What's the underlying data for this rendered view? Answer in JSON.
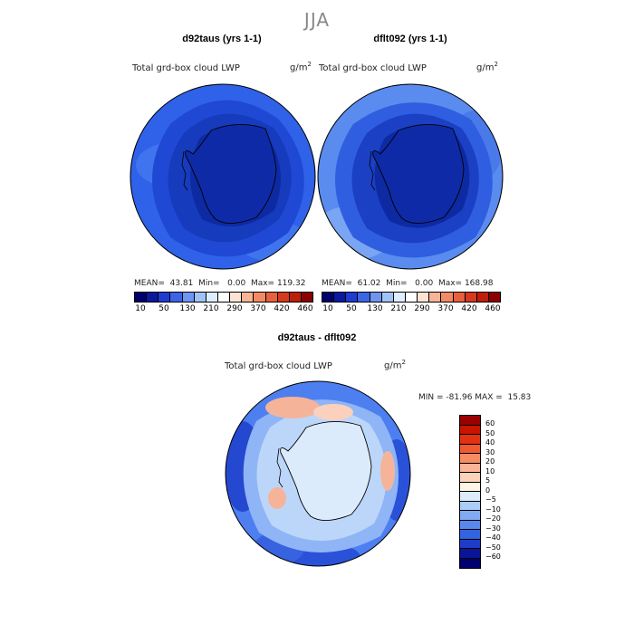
{
  "season": "JJA",
  "panels": {
    "left": {
      "title": "d92taus (yrs 1-1)",
      "variable": "Total grd-box cloud LWP",
      "units_base": "g/m",
      "units_exp": "2",
      "stats": "MEAN=  43.81  Min=   0.00  Max= 119.32"
    },
    "right": {
      "title": "dflt092 (yrs 1-1)",
      "variable": "Total grd-box cloud LWP",
      "units_base": "g/m",
      "units_exp": "2",
      "stats": "MEAN=  61.02  Min=   0.00  Max= 168.98"
    },
    "diff": {
      "title": "d92taus - dflt092",
      "variable": "Total grd-box cloud LWP",
      "units_base": "g/m",
      "units_exp": "2",
      "stats": "MIN = -81.96 MAX =  15.83"
    }
  },
  "colorbar_top": {
    "tick_labels": [
      "10",
      "50",
      "130",
      "210",
      "290",
      "370",
      "420",
      "460"
    ],
    "colors": [
      "#00006e",
      "#0a18a0",
      "#1e3cd2",
      "#3c64e6",
      "#6e96f0",
      "#a0c3f5",
      "#dceeff",
      "#ffffff",
      "#fde3d3",
      "#f9b496",
      "#f28a64",
      "#e8603c",
      "#d7391e",
      "#be1e0a",
      "#8c0000"
    ]
  },
  "colorbar_diff": {
    "labels": [
      "60",
      "50",
      "40",
      "30",
      "20",
      "10",
      "5",
      "0",
      "−5",
      "−10",
      "−20",
      "−30",
      "−40",
      "−50",
      "−60"
    ],
    "colors": [
      "#9b0000",
      "#c81400",
      "#e13214",
      "#f05a32",
      "#f78c64",
      "#fab496",
      "#fcd2b9",
      "#fff5e6",
      "#dcecfa",
      "#aacdf5",
      "#82aaf0",
      "#5a87eb",
      "#3264e1",
      "#1e3cc8",
      "#0a1496",
      "#00006e"
    ]
  }
}
